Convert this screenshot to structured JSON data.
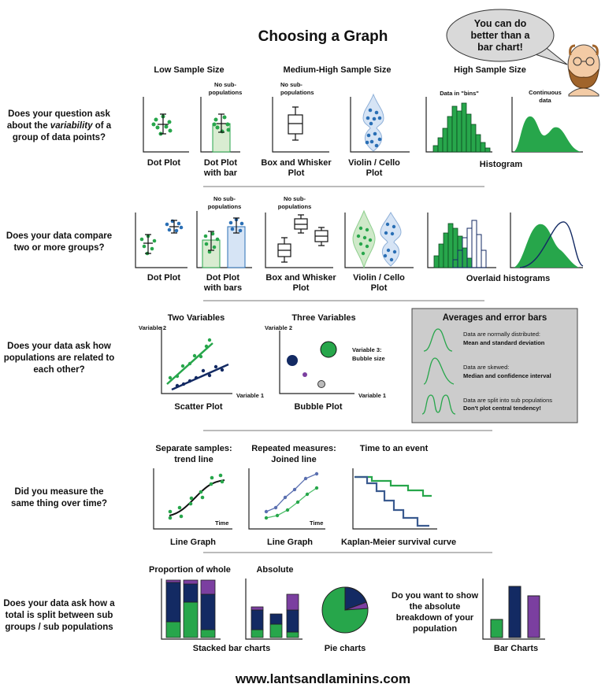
{
  "title": "Choosing a Graph",
  "speech_bubble": [
    "You can do",
    "better than a",
    "bar chart!"
  ],
  "column_headers": [
    "Low Sample Size",
    "Medium-High Sample Size",
    "High Sample Size"
  ],
  "rows": [
    {
      "question": [
        "Does your question ask",
        [
          "about the ",
          "variability",
          " of a"
        ],
        "group of data points?"
      ],
      "notes": [
        [
          "No sub-",
          "populations"
        ],
        [
          "No sub-",
          "populations"
        ],
        [
          "Data in \"bins\""
        ],
        [
          "Continuous",
          "data"
        ]
      ],
      "labels": [
        [
          "Dot Plot"
        ],
        [
          "Dot Plot",
          "with bar"
        ],
        [
          "Box and Whisker",
          "Plot"
        ],
        [
          "Violin / Cello",
          "Plot"
        ],
        [
          "Histogram"
        ]
      ]
    },
    {
      "question": [
        "Does your data compare",
        "two or more groups?"
      ],
      "notes": [
        [
          "No sub-",
          "populations"
        ],
        [
          "No sub-",
          "populations"
        ]
      ],
      "labels": [
        [
          "Dot Plot"
        ],
        [
          "Dot Plot",
          "with bars"
        ],
        [
          "Box and Whisker",
          "Plot"
        ],
        [
          "Violin / Cello",
          "Plot"
        ],
        [
          "Overlaid histograms"
        ]
      ]
    },
    {
      "question": [
        "Does your data ask how",
        "populations are related to",
        "each other?"
      ],
      "headers": [
        "Two Variables",
        "Three Variables"
      ],
      "axis_labels": [
        "Variable 2",
        "Variable 1",
        "Variable 2",
        "Variable 1"
      ],
      "bubble_note": [
        "Variable 3:",
        "Bubble size"
      ],
      "labels": [
        "Scatter Plot",
        "Bubble Plot"
      ],
      "panel": {
        "title": "Averages and error bars",
        "items": [
          [
            "Data are normally distributed:",
            "Mean and standard deviation"
          ],
          [
            "Data are skewed:",
            "Median and confidence interval"
          ],
          [
            "Data are split into sub populations",
            "Don't plot central tendency!"
          ]
        ]
      }
    },
    {
      "question": [
        "Did you measure the",
        "same thing over time?"
      ],
      "headers": [
        [
          "Separate samples:",
          "trend line"
        ],
        [
          "Repeated measures:",
          "Joined line"
        ],
        [
          "Time to an event"
        ]
      ],
      "axis_labels": [
        "Time",
        "Time"
      ],
      "labels": [
        "Line Graph",
        "Line Graph",
        "Kaplan-Meier survival curve"
      ]
    },
    {
      "question": [
        "Does your data ask how a",
        "total is split between sub",
        "groups / sub populations"
      ],
      "headers": [
        "Proportion of whole",
        "Absolute"
      ],
      "side_question": [
        "Do you want to show",
        "the absolute",
        "breakdown of your",
        "population"
      ],
      "labels": [
        "Stacked bar charts",
        "Pie charts",
        "Bar Charts"
      ]
    }
  ],
  "footer": "www.lantsandlaminins.com"
}
